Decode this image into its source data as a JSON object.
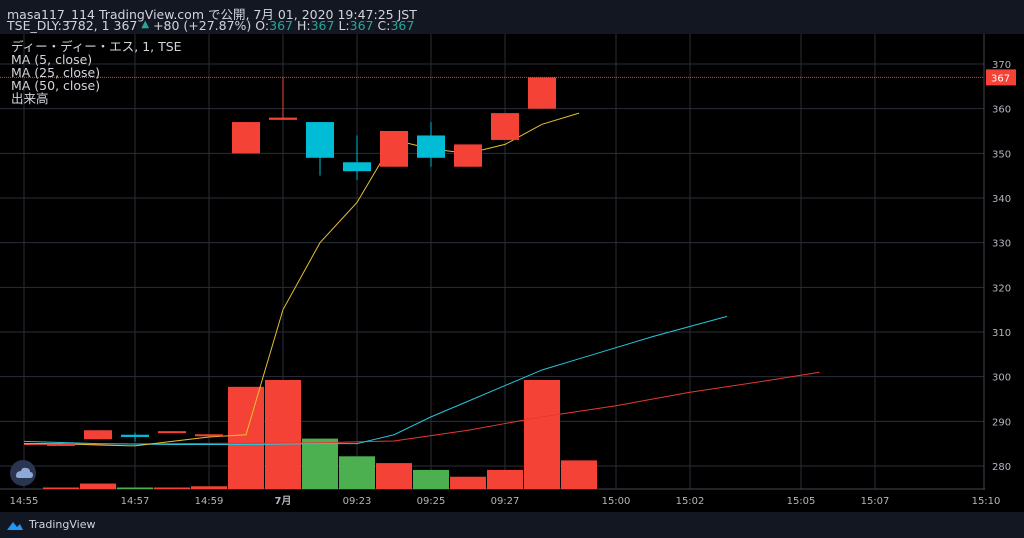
{
  "header": {
    "line1": "masa117_114 TradingView.com で公開, 7月 01, 2020 19:47:25 JST",
    "symbol_prefix": "TSE_DLY:3782, 1 367",
    "change_arrow": "▲",
    "change": "+80 (+27.87%)",
    "o_label": "O:",
    "o_value": "367",
    "h_label": "H:",
    "h_value": "367",
    "l_label": "L:",
    "l_value": "367",
    "c_label": "C:",
    "c_value": "367"
  },
  "legend": {
    "series_title": "ディー・ディー・エス, 1, TSE",
    "ma5": "MA (5, close)",
    "ma25": "MA (25, close)",
    "ma50": "MA (50, close)",
    "volume": "出来高"
  },
  "footer": {
    "brand": "TradingView"
  },
  "colors": {
    "up": "#f44336",
    "down": "#00bcd4",
    "vol_up": "#f44336",
    "vol_down": "#4caf50",
    "ma5": "#e6c02e",
    "ma25": "#26c6da",
    "ma50": "#e53935",
    "bg": "#000000",
    "grid": "#2a2e39"
  },
  "chart_data": {
    "type": "candlestick",
    "ylim": [
      275,
      373
    ],
    "y_ticks": [
      280,
      290,
      300,
      310,
      320,
      330,
      340,
      350,
      360,
      370
    ],
    "last_price": 367,
    "x_ticks": [
      {
        "i": 0,
        "label": "14:55"
      },
      {
        "i": 3,
        "label": "14:57"
      },
      {
        "i": 5,
        "label": "14:59"
      },
      {
        "i": 7,
        "label": "7月"
      },
      {
        "i": 9,
        "label": "09:23"
      },
      {
        "i": 11,
        "label": "09:25"
      },
      {
        "i": 13,
        "label": "09:27"
      },
      {
        "i": 16,
        "label": "15:00"
      },
      {
        "i": 18,
        "label": "15:02"
      },
      {
        "i": 21,
        "label": "15:05"
      },
      {
        "i": 23,
        "label": "15:07"
      },
      {
        "i": 26,
        "label": "15:10"
      }
    ],
    "candles": [
      {
        "i": 1,
        "o": 284.5,
        "h": 285,
        "l": 284.5,
        "c": 285
      },
      {
        "i": 2,
        "o": 286,
        "h": 288,
        "l": 286,
        "c": 288
      },
      {
        "i": 3,
        "o": 287,
        "h": 287.5,
        "l": 285.5,
        "c": 286.5
      },
      {
        "i": 4,
        "o": 287.7,
        "h": 287.8,
        "l": 287.6,
        "c": 287.8
      },
      {
        "i": 5,
        "o": 287,
        "h": 287.1,
        "l": 286.9,
        "c": 287.1
      },
      {
        "i": 6,
        "o": 350,
        "h": 357,
        "l": 350,
        "c": 357
      },
      {
        "i": 7,
        "o": 357.5,
        "h": 367,
        "l": 357.5,
        "c": 358
      },
      {
        "i": 8,
        "o": 357,
        "h": 357,
        "l": 345,
        "c": 349
      },
      {
        "i": 9,
        "o": 348,
        "h": 354,
        "l": 344,
        "c": 346
      },
      {
        "i": 10,
        "o": 347,
        "h": 355,
        "l": 347,
        "c": 355
      },
      {
        "i": 11,
        "o": 354,
        "h": 357,
        "l": 347,
        "c": 349
      },
      {
        "i": 12,
        "o": 347,
        "h": 352,
        "l": 347,
        "c": 352
      },
      {
        "i": 13,
        "o": 353,
        "h": 359,
        "l": 353,
        "c": 359
      },
      {
        "i": 14,
        "o": 360,
        "h": 367,
        "l": 360,
        "c": 367
      }
    ],
    "volume": [
      {
        "i": 1,
        "v": 1,
        "dir": "up"
      },
      {
        "i": 2,
        "v": 4,
        "dir": "up"
      },
      {
        "i": 3,
        "v": 1,
        "dir": "down"
      },
      {
        "i": 4,
        "v": 1,
        "dir": "up"
      },
      {
        "i": 5,
        "v": 2,
        "dir": "up"
      },
      {
        "i": 6,
        "v": 75,
        "dir": "up"
      },
      {
        "i": 7,
        "v": 80,
        "dir": "up"
      },
      {
        "i": 8,
        "v": 37,
        "dir": "down"
      },
      {
        "i": 9,
        "v": 24,
        "dir": "down"
      },
      {
        "i": 10,
        "v": 19,
        "dir": "up"
      },
      {
        "i": 11,
        "v": 14,
        "dir": "down"
      },
      {
        "i": 12,
        "v": 9,
        "dir": "up"
      },
      {
        "i": 13,
        "v": 14,
        "dir": "up"
      },
      {
        "i": 14,
        "v": 80,
        "dir": "up"
      },
      {
        "i": 15,
        "v": 21,
        "dir": "up"
      }
    ],
    "ma5": [
      [
        0,
        285
      ],
      [
        1,
        285
      ],
      [
        2,
        284.7
      ],
      [
        3,
        284.5
      ],
      [
        4,
        285.5
      ],
      [
        5,
        286.5
      ],
      [
        6,
        287
      ],
      [
        7,
        315
      ],
      [
        8,
        330
      ],
      [
        9,
        339
      ],
      [
        10,
        353
      ],
      [
        11,
        351
      ],
      [
        12,
        350
      ],
      [
        13,
        352
      ],
      [
        14,
        356.5
      ],
      [
        15,
        359
      ]
    ],
    "ma25": [
      [
        0,
        285.5
      ],
      [
        2,
        285
      ],
      [
        4,
        284.8
      ],
      [
        6,
        284.8
      ],
      [
        8,
        285
      ],
      [
        9,
        285
      ],
      [
        10,
        287
      ],
      [
        11,
        291
      ],
      [
        12,
        294.5
      ],
      [
        13,
        298
      ],
      [
        14,
        301.5
      ],
      [
        15,
        304
      ],
      [
        17,
        309
      ],
      [
        19,
        313.5
      ]
    ],
    "ma50": [
      [
        0,
        284.8
      ],
      [
        4,
        285
      ],
      [
        8,
        285.2
      ],
      [
        10,
        285.6
      ],
      [
        11,
        286.8
      ],
      [
        12,
        288
      ],
      [
        13,
        289.5
      ],
      [
        14,
        291
      ],
      [
        16,
        293.5
      ],
      [
        18,
        296.5
      ],
      [
        20,
        299
      ],
      [
        21.5,
        301
      ]
    ]
  }
}
